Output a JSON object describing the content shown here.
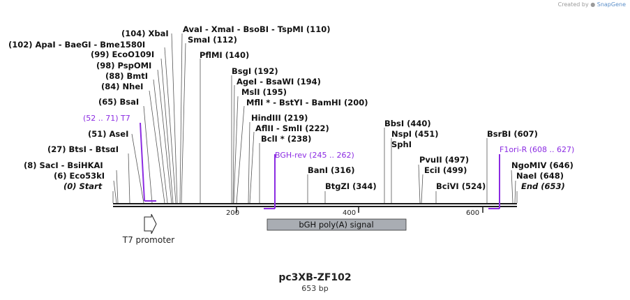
{
  "brand": {
    "created_by": "Created by",
    "app": "SnapGene"
  },
  "map": {
    "name": "pc3XB-ZF102",
    "length_label": "653 bp",
    "length_bp": 653,
    "axis_ticks": [
      "200",
      "400",
      "600"
    ],
    "sites": [
      {
        "text": "(104)  XbaI"
      },
      {
        "text": "AvaI  - XmaI  - BsoBI  - TspMI   (110)"
      },
      {
        "text": "SmaI   (112)"
      },
      {
        "text": "(102)  ApaI  - BaeGI  - Bme1580I"
      },
      {
        "text": "(99)  EcoO109I"
      },
      {
        "text": "PflMI   (140)"
      },
      {
        "text": "(98)  PspOMI"
      },
      {
        "text": "BsgI   (192)"
      },
      {
        "text": "(88)  BmtI"
      },
      {
        "text": "AgeI  - BsaWI   (194)"
      },
      {
        "text": "(84)  NheI"
      },
      {
        "text": "MslI   (195)"
      },
      {
        "text": "MflI *  - BstYI  - BamHI   (200)"
      },
      {
        "text": "(65)  BsaI"
      },
      {
        "text": "HindIII   (219)"
      },
      {
        "text": "AflII  - SmlI   (222)"
      },
      {
        "text": "(51)  AseI"
      },
      {
        "text": "BclI *  (238)"
      },
      {
        "text": "BbsI   (440)"
      },
      {
        "text": "NspI   (451)"
      },
      {
        "text": "SphI"
      },
      {
        "text": "BsrBI   (607)"
      },
      {
        "text": "(27)  BtsI  - BtsαI"
      },
      {
        "text": "(8)  SacI  - BsiHKAI"
      },
      {
        "text": "(6)  Eco53kI"
      },
      {
        "text": "(0)  Start"
      },
      {
        "text": "BanI   (316)"
      },
      {
        "text": "BtgZI   (344)"
      },
      {
        "text": "PvuII   (497)"
      },
      {
        "text": "EciI   (499)"
      },
      {
        "text": "BciVI   (524)"
      },
      {
        "text": "NgoMIV   (646)"
      },
      {
        "text": "NaeI   (648)"
      },
      {
        "text": "End   (653)"
      }
    ],
    "primers": [
      {
        "text": "(52 .. 71)  T7",
        "start": 52,
        "end": 71
      },
      {
        "text": "BGH-rev   (245 .. 262)",
        "start": 245,
        "end": 262
      },
      {
        "text": "F1ori-R   (608 .. 627)",
        "start": 608,
        "end": 627
      }
    ],
    "features": [
      {
        "text": "bGH poly(A) signal"
      },
      {
        "text": "T7 promoter"
      }
    ],
    "colors": {
      "primer": "#8b2be2",
      "feature_fill": "#a9adb3",
      "line": "#1a1a1a"
    }
  }
}
